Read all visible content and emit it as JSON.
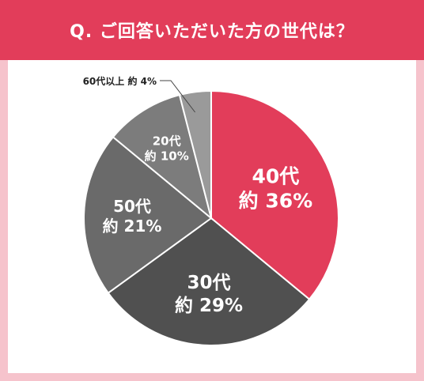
{
  "header": {
    "title": "Q. ご回答いただいた方の世代は？"
  },
  "colors": {
    "header_bg": "#e23d5a",
    "frame_bg": "#f6c3cc",
    "panel_bg": "#ffffff"
  },
  "chart_data": {
    "type": "pie",
    "title": "",
    "slices": [
      {
        "label": "40代",
        "value_text": "約 36%",
        "value": 36,
        "color": "#e23d5a"
      },
      {
        "label": "30代",
        "value_text": "約 29%",
        "value": 29,
        "color": "#505050"
      },
      {
        "label": "50代",
        "value_text": "約 21%",
        "value": 21,
        "color": "#6a6a6a"
      },
      {
        "label": "20代",
        "value_text": "約 10%",
        "value": 10,
        "color": "#7c7c7c"
      },
      {
        "label": "60代以上",
        "value_text": "約 4%",
        "value": 4,
        "color": "#9a9a9a"
      }
    ],
    "start": "12 o'clock",
    "direction": "clockwise",
    "legend": "none"
  }
}
